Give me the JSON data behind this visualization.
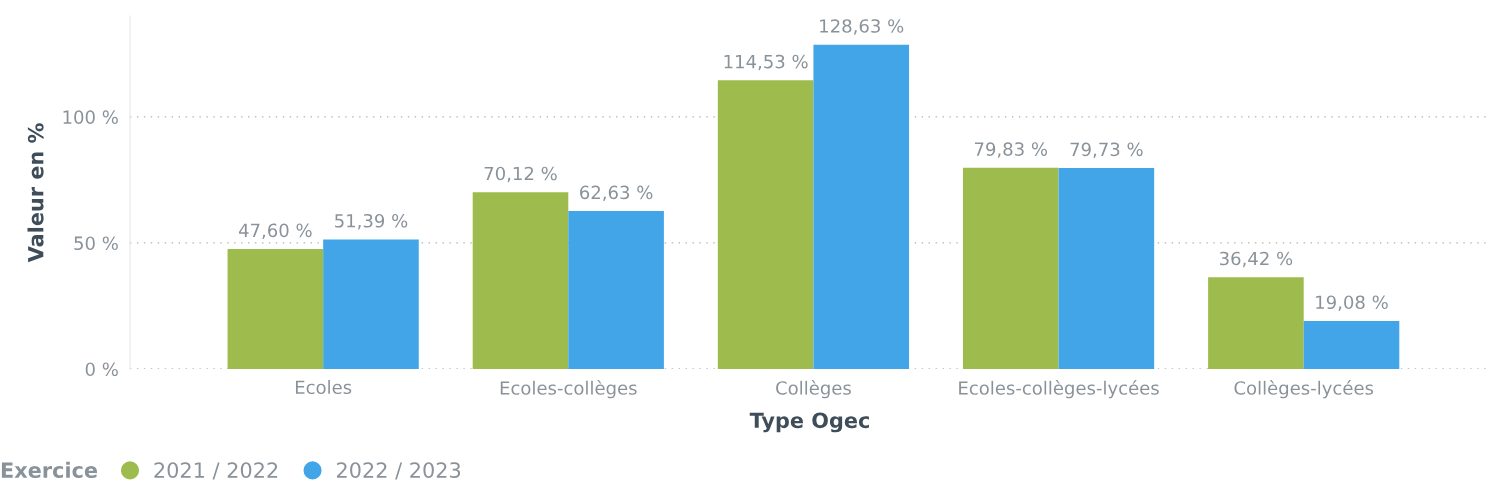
{
  "chart_data": {
    "type": "bar",
    "xlabel": "Type Ogec",
    "ylabel": "Valeur en %",
    "legend_title": "Exercice",
    "legend": "bottom left",
    "grid": "y",
    "categories": [
      "Ecoles",
      "Ecoles-collèges",
      "Collèges",
      "Ecoles-collèges-lycées",
      "Collèges-lycées"
    ],
    "series": [
      {
        "name": "2021 / 2022",
        "color": "#9dbc4d",
        "values": [
          47.6,
          70.12,
          114.53,
          79.83,
          36.42
        ],
        "value_labels": [
          "47,60 %",
          "70,12 %",
          "114,53 %",
          "79,83 %",
          "36,42 %"
        ]
      },
      {
        "name": "2022 / 2023",
        "color": "#42a5e8",
        "values": [
          51.39,
          62.63,
          128.63,
          79.73,
          19.08
        ],
        "value_labels": [
          "51,39 %",
          "62,63 %",
          "128,63 %",
          "79,73 %",
          "19,08 %"
        ]
      }
    ],
    "ylim": [
      0,
      140
    ],
    "yticks": [
      {
        "value": 0,
        "label": "0 %"
      },
      {
        "value": 50,
        "label": "50 %"
      },
      {
        "value": 100,
        "label": "100 %"
      }
    ]
  }
}
